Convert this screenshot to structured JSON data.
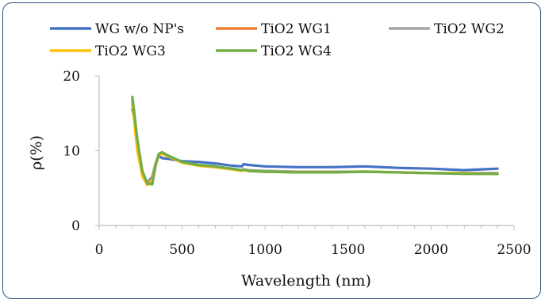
{
  "chart_data": {
    "type": "line",
    "title": "",
    "xlabel": "Wavelength (nm)",
    "ylabel": "ρ(%)",
    "xlim": [
      0,
      2500
    ],
    "ylim": [
      0,
      20
    ],
    "xticks": [
      "0",
      "500",
      "1000",
      "1500",
      "2000",
      "2500"
    ],
    "yticks": [
      "0",
      "10",
      "20"
    ],
    "grid": false,
    "legend_position": "top",
    "series": [
      {
        "name": "WG w/o NP's",
        "color": "#4472c4",
        "x": [
          200,
          210,
          230,
          260,
          290,
          320,
          340,
          360,
          380,
          420,
          500,
          600,
          700,
          800,
          860,
          870,
          900,
          1000,
          1200,
          1400,
          1600,
          1800,
          2000,
          2200,
          2300,
          2400
        ],
        "y": [
          15.5,
          14.6,
          11.0,
          7.2,
          5.7,
          6.5,
          8.3,
          9.3,
          9.0,
          8.9,
          8.6,
          8.5,
          8.3,
          8.0,
          7.9,
          8.2,
          8.1,
          7.9,
          7.8,
          7.8,
          7.9,
          7.7,
          7.6,
          7.4,
          7.5,
          7.6
        ]
      },
      {
        "name": "TiO2 WG1",
        "color": "#ed7d31",
        "x": [
          200,
          210,
          230,
          260,
          290,
          320,
          340,
          360,
          380,
          420,
          500,
          600,
          700,
          800,
          860,
          870,
          900,
          1000,
          1200,
          1400,
          1600,
          1800,
          2000,
          2200,
          2300,
          2400
        ],
        "y": [
          16.2,
          15.0,
          10.8,
          7.0,
          5.6,
          6.3,
          8.2,
          9.5,
          9.6,
          9.2,
          8.4,
          8.0,
          7.8,
          7.5,
          7.3,
          7.4,
          7.3,
          7.2,
          7.1,
          7.1,
          7.2,
          7.1,
          7.0,
          7.0,
          7.0,
          7.0
        ]
      },
      {
        "name": "TiO2 WG2",
        "color": "#a5a5a5",
        "x": [
          200,
          210,
          230,
          260,
          290,
          320,
          340,
          360,
          380,
          420,
          500,
          600,
          700,
          800,
          860,
          870,
          900,
          1000,
          1200,
          1400,
          1600,
          1800,
          2000,
          2200,
          2300,
          2400
        ],
        "y": [
          16.8,
          15.2,
          11.2,
          7.1,
          5.5,
          6.2,
          8.3,
          9.6,
          9.7,
          9.3,
          8.5,
          8.1,
          7.9,
          7.6,
          7.4,
          7.5,
          7.4,
          7.3,
          7.2,
          7.2,
          7.2,
          7.1,
          7.0,
          7.0,
          7.0,
          7.0
        ]
      },
      {
        "name": "TiO2 WG3",
        "color": "#ffc000",
        "x": [
          200,
          210,
          230,
          260,
          290,
          320,
          340,
          360,
          380,
          420,
          500,
          600,
          700,
          800,
          860,
          870,
          900,
          1000,
          1200,
          1400,
          1600,
          1800,
          2000,
          2200,
          2300,
          2400
        ],
        "y": [
          16.5,
          14.2,
          10.0,
          6.6,
          5.4,
          6.0,
          8.0,
          9.4,
          9.6,
          9.2,
          8.4,
          8.0,
          7.8,
          7.5,
          7.3,
          7.4,
          7.3,
          7.2,
          7.1,
          7.1,
          7.2,
          7.1,
          7.0,
          7.0,
          6.9,
          6.9
        ]
      },
      {
        "name": "TiO2 WG4",
        "color": "#70ad47",
        "x": [
          200,
          210,
          230,
          260,
          290,
          320,
          340,
          360,
          380,
          420,
          500,
          600,
          700,
          800,
          860,
          870,
          900,
          1000,
          1200,
          1400,
          1600,
          1800,
          2000,
          2200,
          2300,
          2400
        ],
        "y": [
          17.2,
          15.4,
          11.5,
          7.3,
          5.6,
          5.5,
          8.0,
          9.6,
          9.8,
          9.3,
          8.5,
          8.1,
          7.9,
          7.6,
          7.4,
          7.5,
          7.3,
          7.2,
          7.1,
          7.1,
          7.2,
          7.1,
          7.0,
          6.9,
          6.9,
          6.9
        ]
      }
    ]
  }
}
